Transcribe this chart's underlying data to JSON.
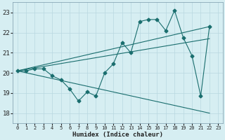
{
  "xlabel": "Humidex (Indice chaleur)",
  "bg_color": "#d6eef2",
  "grid_color": "#b8d8e0",
  "line_color": "#1a6e6e",
  "xlim": [
    -0.5,
    23.5
  ],
  "ylim": [
    17.5,
    23.5
  ],
  "yticks": [
    18,
    19,
    20,
    21,
    22,
    23
  ],
  "xticks": [
    0,
    1,
    2,
    3,
    4,
    5,
    6,
    7,
    8,
    9,
    10,
    11,
    12,
    13,
    14,
    15,
    16,
    17,
    18,
    19,
    20,
    21,
    22,
    23
  ],
  "main_series": {
    "x": [
      0,
      1,
      2,
      3,
      4,
      5,
      6,
      7,
      8,
      9,
      10,
      11,
      12,
      13,
      14,
      15,
      16,
      17,
      18,
      19,
      20,
      21,
      22
    ],
    "y": [
      20.1,
      20.1,
      20.2,
      20.2,
      19.85,
      19.65,
      19.2,
      18.6,
      19.05,
      18.85,
      20.0,
      20.45,
      21.5,
      21.0,
      22.55,
      22.65,
      22.65,
      22.1,
      23.1,
      21.75,
      20.85,
      18.85,
      22.3
    ]
  },
  "ref_lines": [
    {
      "x": [
        0,
        22
      ],
      "y": [
        20.1,
        18.0
      ]
    },
    {
      "x": [
        0,
        22
      ],
      "y": [
        20.1,
        22.3
      ]
    },
    {
      "x": [
        0,
        22
      ],
      "y": [
        20.1,
        21.7
      ]
    }
  ]
}
